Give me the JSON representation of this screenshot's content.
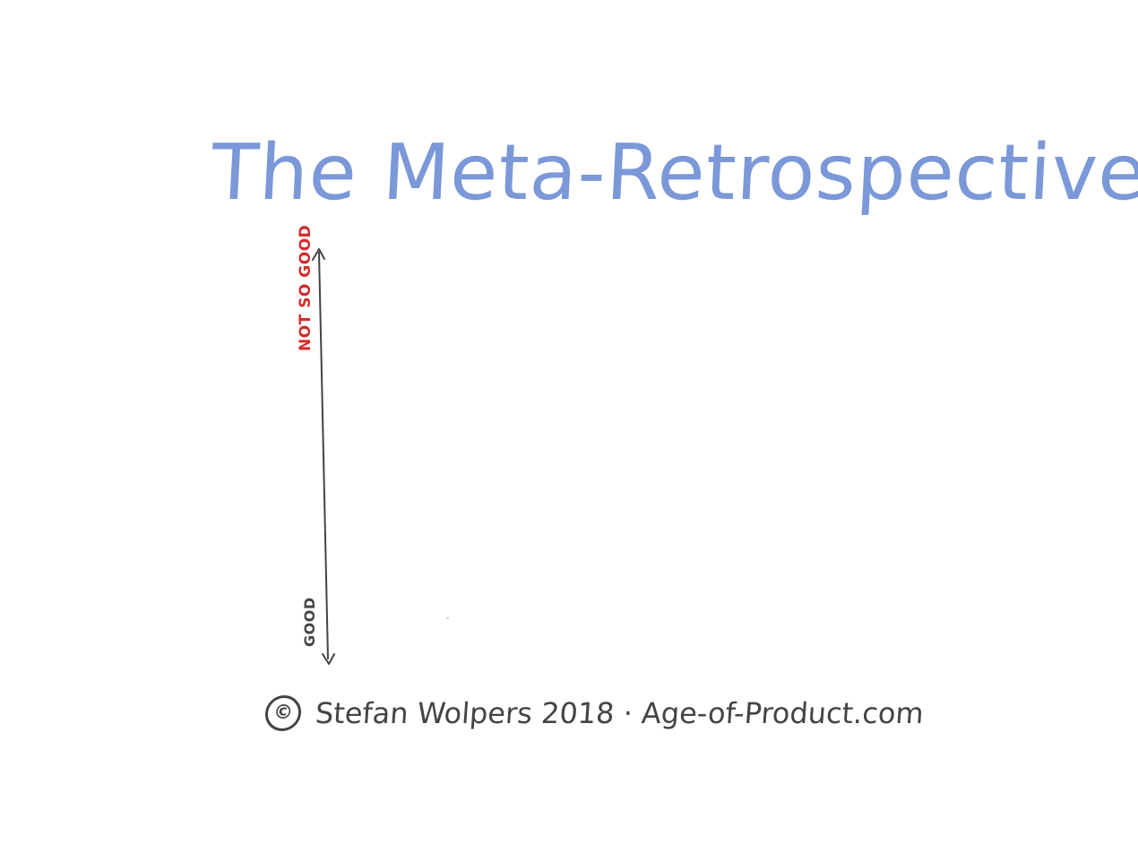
{
  "title": "The Meta-Retrospective",
  "axis": {
    "top_label": "NOT SO GOOD",
    "bottom_label": "GOOD"
  },
  "footer": {
    "copyright_symbol": "©",
    "text": "Stefan Wolpers 2018 · Age-of-Product.com"
  },
  "colors": {
    "title": "#7b98d8",
    "top_label": "#d42b2b",
    "ink": "#444444"
  },
  "icons": {
    "copyright": "copyright-icon",
    "arrow_up": "arrowhead-up-icon",
    "arrow_down": "arrowhead-down-icon"
  }
}
